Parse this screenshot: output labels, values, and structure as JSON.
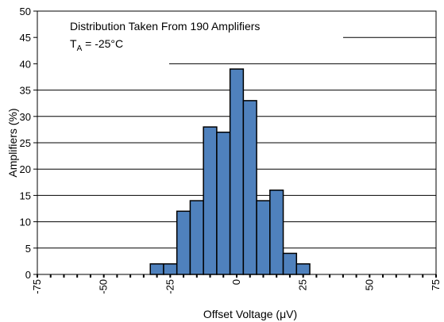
{
  "chart_data": {
    "type": "bar",
    "title": "",
    "xlabel": "Offset Voltage (μV)",
    "ylabel": "Amplifiers (%)",
    "xlim": [
      -75,
      75
    ],
    "ylim": [
      0,
      50
    ],
    "bin_width": 5,
    "xticks": [
      "-75",
      "-50",
      "-25",
      "0",
      "25",
      "50",
      "75"
    ],
    "yticks": [
      "0",
      "5",
      "10",
      "15",
      "20",
      "25",
      "30",
      "35",
      "40",
      "45",
      "50"
    ],
    "grid": "horizontal",
    "bar_color": "#4f81bd",
    "annotation": {
      "line1": "Distribution Taken From 190 Amplifiers",
      "line2_main": "T",
      "line2_sub": "A",
      "line2_rest": " = -25°C"
    },
    "bins": [
      {
        "x": -30,
        "value": 2
      },
      {
        "x": -25,
        "value": 2
      },
      {
        "x": -20,
        "value": 12
      },
      {
        "x": -15,
        "value": 14
      },
      {
        "x": -10,
        "value": 28
      },
      {
        "x": -5,
        "value": 27
      },
      {
        "x": 0,
        "value": 39
      },
      {
        "x": 5,
        "value": 33
      },
      {
        "x": 10,
        "value": 14
      },
      {
        "x": 15,
        "value": 16
      },
      {
        "x": 20,
        "value": 4
      },
      {
        "x": 25,
        "value": 2
      }
    ]
  }
}
